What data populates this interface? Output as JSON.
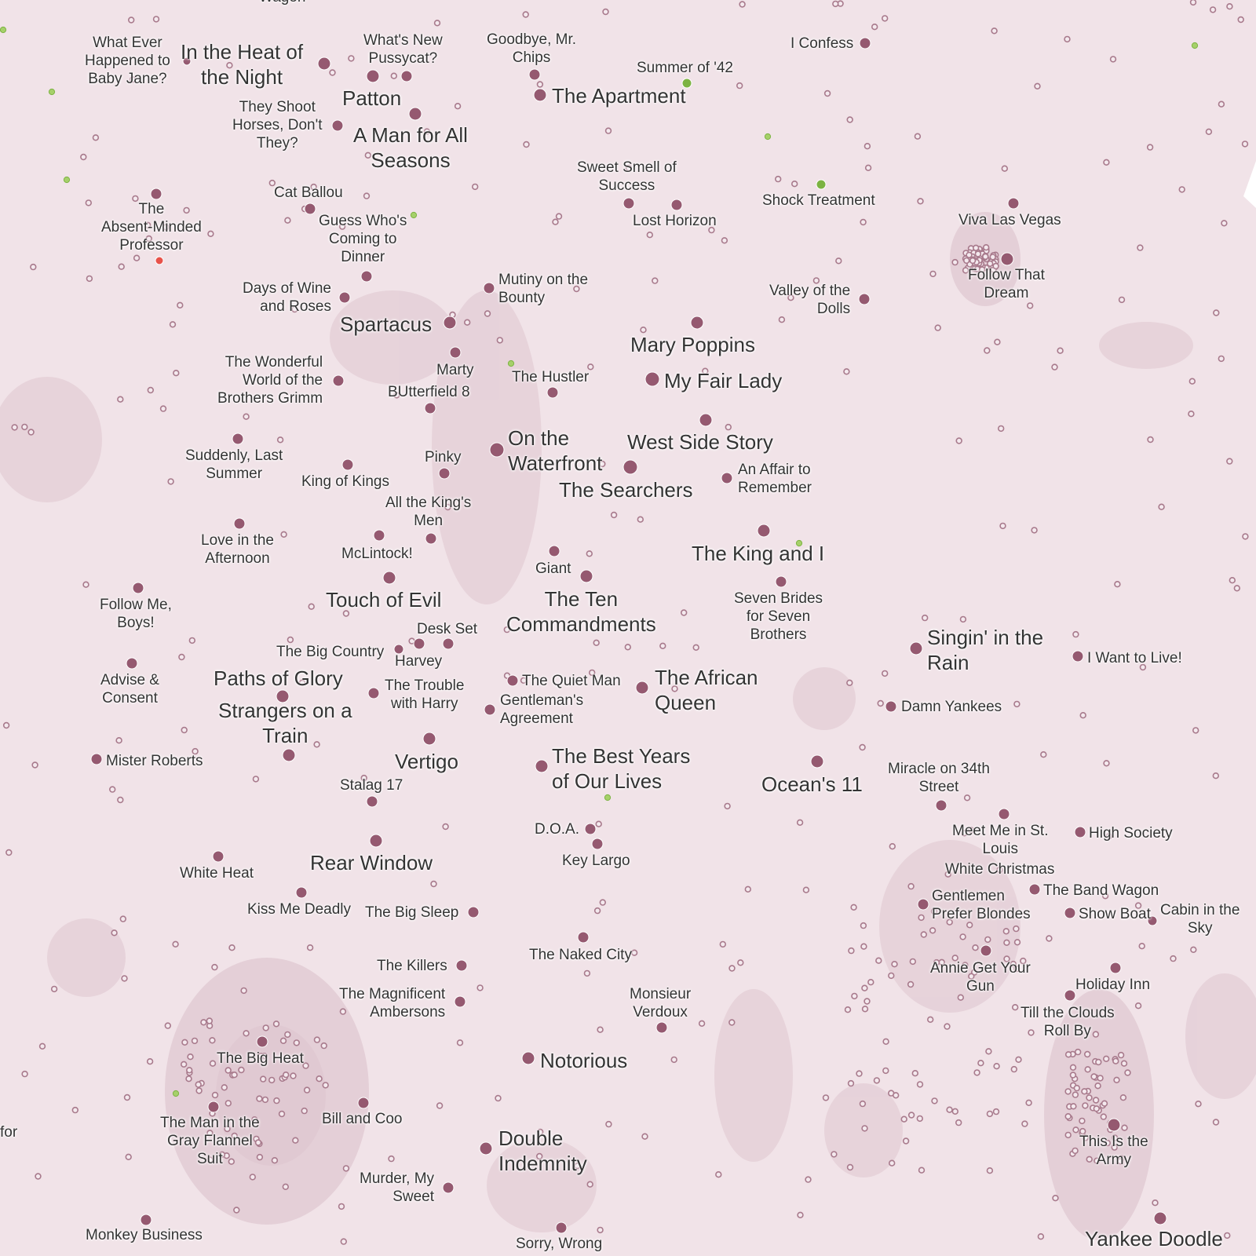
{
  "colors": {
    "background": "#f1e3e8",
    "density": "#c9a6b4",
    "movie_dot": "#955970",
    "minor_dot": "#a87a8c",
    "highlight_dot": "#7cb342",
    "alert_dot": "#e8524a"
  },
  "labels": {
    "wagon_top": "Wagon",
    "for_edge": "for",
    "what_ever": "What Ever\nHappened to\nBaby Jane?",
    "heat_of_night": "In the Heat of\nthe Night",
    "whats_new": "What's New\nPussycat?",
    "goodbye_chips": "Goodbye, Mr.\nChips",
    "summer_42": "Summer of '42",
    "i_confess": "I Confess",
    "patton": "Patton",
    "apartment": "The Apartment",
    "they_shoot": "They Shoot\nHorses, Don't\nThey?",
    "man_all_seasons": "A Man for All\nSeasons",
    "sweet_smell": "Sweet Smell of\nSuccess",
    "shock_treatment": "Shock Treatment",
    "cat_ballou": "Cat Ballou",
    "absent_minded": "The\nAbsent-Minded\nProfessor",
    "guess_who": "Guess Who's\nComing to\nDinner",
    "lost_horizon": "Lost Horizon",
    "viva_las_vegas": "Viva Las Vegas",
    "follow_dream": "Follow That\nDream",
    "mutiny": "Mutiny on the\nBounty",
    "days_wine": "Days of Wine\nand Roses",
    "valley_dolls": "Valley of the\nDolls",
    "spartacus": "Spartacus",
    "mary_poppins": "Mary Poppins",
    "wonderful_world": "The Wonderful\nWorld of the\nBrothers Grimm",
    "marty": "Marty",
    "the_hustler": "The Hustler",
    "my_fair_lady": "My Fair Lady",
    "butterfield": "BUtterfield 8",
    "on_waterfront": "On the\nWaterfront",
    "west_side": "West Side Story",
    "suddenly": "Suddenly, Last\nSummer",
    "pinky": "Pinky",
    "king_of_kings": "King of Kings",
    "searchers": "The Searchers",
    "affair_remember": "An Affair to\nRemember",
    "all_kings_men": "All the King's\nMen",
    "love_afternoon": "Love in the\nAfternoon",
    "mclintock": "McLintock!",
    "king_and_i": "The King and I",
    "giant": "Giant",
    "follow_boys": "Follow Me,\nBoys!",
    "touch_of_evil": "Touch of Evil",
    "ten_commandments": "The Ten\nCommandments",
    "seven_brides": "Seven Brides\nfor Seven\nBrothers",
    "desk_set": "Desk Set",
    "singin_rain": "Singin' in the\nRain",
    "big_country": "The Big Country",
    "harvey": "Harvey",
    "i_want_live": "I Want to Live!",
    "advise_consent": "Advise &\nConsent",
    "paths_glory": "Paths of Glory",
    "trouble_harry": "The Trouble\nwith Harry",
    "quiet_man": "The Quiet Man",
    "african_queen": "The African\nQueen",
    "gentlemans_agreement": "Gentleman's\nAgreement",
    "damn_yankees": "Damn Yankees",
    "strangers_train": "Strangers on a\nTrain",
    "mister_roberts": "Mister Roberts",
    "vertigo": "Vertigo",
    "best_years": "The Best Years\nof Our Lives",
    "oceans_11": "Ocean's 11",
    "miracle_34th": "Miracle on 34th\nStreet",
    "stalag_17": "Stalag 17",
    "doa": "D.O.A.",
    "meet_st_louis": "Meet Me in St.\nLouis",
    "high_society": "High Society",
    "white_heat": "White Heat",
    "rear_window": "Rear Window",
    "key_largo": "Key Largo",
    "white_christmas": "White Christmas",
    "band_wagon": "The Band Wagon",
    "gentlemen_blondes": "Gentlemen\nPrefer Blondes",
    "show_boat": "Show Boat",
    "cabin_sky": "Cabin in the\nSky",
    "kiss_me_deadly": "Kiss Me Deadly",
    "big_sleep": "The Big Sleep",
    "naked_city": "The Naked City",
    "the_killers": "The Killers",
    "annie_gun": "Annie Get Your\nGun",
    "holiday_inn": "Holiday Inn",
    "magnificent_ambersons": "The Magnificent\nAmbersons",
    "monsieur_verdoux": "Monsieur\nVerdoux",
    "till_clouds": "Till the Clouds\nRoll By",
    "big_heat": "The Big Heat",
    "notorious": "Notorious",
    "bill_coo": "Bill and Coo",
    "man_gray_flannel": "The Man in the\nGray Flannel\nSuit",
    "double_indemnity": "Double\nIndemnity",
    "this_is_army": "This Is the\nArmy",
    "murder_sweet": "Murder, My\nSweet",
    "monkey_business": "Monkey Business",
    "sorry_wrong": "Sorry, Wrong",
    "yankee_doodle": "Yankee Doodle"
  }
}
